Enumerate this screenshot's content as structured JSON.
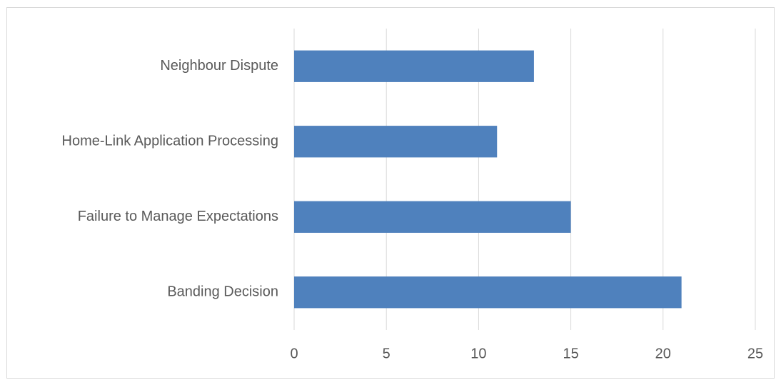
{
  "chart_data": {
    "type": "bar",
    "orientation": "horizontal",
    "categories": [
      "Neighbour Dispute",
      "Home-Link Application Processing",
      "Failure to Manage Expectations",
      "Banding Decision"
    ],
    "values": [
      13,
      11,
      15,
      21
    ],
    "xlim": [
      0,
      25
    ],
    "x_ticks": [
      0,
      5,
      10,
      15,
      20,
      25
    ],
    "grid": true,
    "legend": "none",
    "bar_color": "#4f81bd",
    "grid_color": "#d9d9d9",
    "text_color": "#595959"
  }
}
